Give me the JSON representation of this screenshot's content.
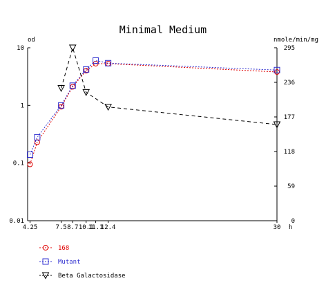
{
  "chart_data": {
    "type": "line",
    "title": "Minimal Medium",
    "xlabel": "h",
    "ylabel_left": "od",
    "ylabel_right": "nmole/min/mg",
    "x_tick_labels": [
      "4.25",
      "7.5",
      "8.7",
      "10.1",
      "11.1",
      "12.4",
      "30"
    ],
    "xlim": [
      4,
      30
    ],
    "y_left": {
      "scale": "log",
      "lim": [
        0.01,
        10
      ],
      "tick_labels": [
        "10",
        "1",
        "0.1",
        "0.01"
      ],
      "tick_values": [
        10,
        1,
        0.1,
        0.01
      ]
    },
    "y_right": {
      "scale": "linear",
      "lim": [
        0,
        295
      ],
      "tick_labels": [
        "295",
        "236",
        "177",
        "118",
        "59",
        "0"
      ],
      "tick_values": [
        295,
        236,
        177,
        118,
        59,
        0
      ]
    },
    "grid": false,
    "legend_placement": "bottom-left",
    "series": [
      {
        "name": "168",
        "axis": "left",
        "color": "#e00000",
        "marker": "circle",
        "dash": "2,2",
        "x": [
          4.25,
          5,
          7.5,
          8.7,
          10.1,
          11.1,
          12.4,
          30
        ],
        "y": [
          0.095,
          0.23,
          0.95,
          2.1,
          4.0,
          5.3,
          5.3,
          3.8
        ]
      },
      {
        "name": "Mutant",
        "axis": "left",
        "color": "#3030d0",
        "marker": "square",
        "dash": "2,2",
        "x": [
          4.25,
          5,
          7.5,
          8.7,
          10.1,
          11.1,
          12.4,
          30
        ],
        "y": [
          0.14,
          0.28,
          1.0,
          2.2,
          4.2,
          6.0,
          5.4,
          4.1
        ]
      },
      {
        "name": "Beta Galactosidase",
        "axis": "right",
        "color": "#000000",
        "marker": "triangle-down",
        "dash": "5,4",
        "x": [
          7.5,
          8.7,
          10.1,
          12.4,
          30
        ],
        "y": [
          226,
          295,
          219,
          194,
          164
        ]
      }
    ]
  }
}
